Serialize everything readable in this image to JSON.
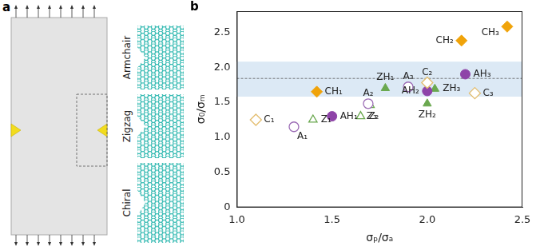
{
  "panel_a": {
    "label": "a",
    "structures": [
      "Armchair",
      "Zigzag",
      "Chiral"
    ]
  },
  "chart_data": {
    "type": "scatter",
    "title": "b",
    "x_label": "σₚ/σₐ",
    "y_label": "σ₀/σₘ",
    "xlim": [
      1,
      2.5
    ],
    "xticks": [
      1,
      1.5,
      2,
      2.5
    ],
    "ylim": [
      0,
      2.8
    ],
    "yticks": [
      0,
      0.5,
      1,
      1.5,
      2,
      2.5
    ],
    "grid": false,
    "reference_band": {
      "y": 1.84,
      "low": 1.58,
      "high": 2.08,
      "color": "#dce9f5"
    },
    "series": [
      {
        "color": "#e3bd6e",
        "marker": "open-diamond",
        "labels": [
          "C₁",
          "C₂",
          "C₃"
        ],
        "x": [
          1.1,
          2.0,
          2.25
        ],
        "values": [
          1.25,
          1.78,
          1.63
        ]
      },
      {
        "color": "#f0a30a",
        "marker": "diamond",
        "labels": [
          "CH₁",
          "CH₂",
          "CH₃"
        ],
        "x": [
          1.42,
          2.18,
          2.42
        ],
        "values": [
          1.65,
          2.38,
          2.58
        ]
      },
      {
        "color": "#9b6bb5",
        "marker": "open-circle",
        "labels": [
          "A₁",
          "A₂",
          "A₃"
        ],
        "x": [
          1.3,
          1.69,
          1.9
        ],
        "values": [
          1.15,
          1.48,
          1.72
        ]
      },
      {
        "color": "#8e44a8",
        "marker": "circle",
        "labels": [
          "AH₁",
          "AH₂",
          "AH₃"
        ],
        "x": [
          1.5,
          2.0,
          2.2
        ],
        "values": [
          1.3,
          1.66,
          1.9
        ]
      },
      {
        "color": "#6aa84f",
        "marker": "open-triangle",
        "labels": [
          "Z₁",
          "Z₂",
          "Z₃"
        ],
        "x": [
          1.4,
          1.65,
          1.7
        ],
        "values": [
          1.25,
          1.3,
          1.46
        ]
      },
      {
        "color": "#6aa84f",
        "marker": "triangle",
        "labels": [
          "ZH₁",
          "ZH₂",
          "ZH₃"
        ],
        "x": [
          1.78,
          2.0,
          2.04
        ],
        "values": [
          1.7,
          1.48,
          1.69
        ]
      }
    ]
  }
}
